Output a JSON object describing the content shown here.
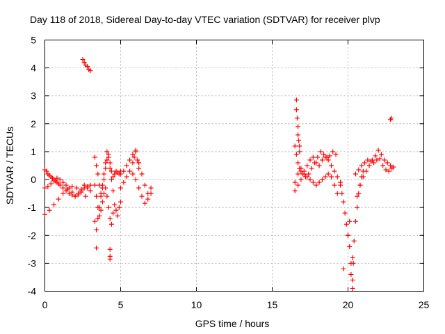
{
  "chart_data": {
    "type": "scatter",
    "title": "Day 118 of 2018, Sidereal Day-to-day VTEC variation (SDTVAR) for receiver plvp",
    "xlabel": "GPS time / hours",
    "ylabel": "SDTVAR / TECUs",
    "xlim": [
      0,
      25
    ],
    "ylim": [
      -4,
      5
    ],
    "xticks": [
      0,
      5,
      10,
      15,
      20,
      25
    ],
    "yticks": [
      -4,
      -3,
      -2,
      -1,
      0,
      1,
      2,
      3,
      4,
      5
    ],
    "grid": true,
    "marker": "+",
    "color": "#ff0000",
    "series": [
      {
        "name": "SDTVAR",
        "x": [
          0.0,
          0.1,
          0.2,
          0.3,
          0.4,
          0.5,
          0.6,
          0.7,
          0.8,
          0.9,
          1.0,
          1.2,
          1.4,
          1.6,
          1.8,
          2.0,
          2.2,
          2.4,
          2.6,
          2.8,
          3.0,
          0.0,
          0.2,
          0.4,
          0.6,
          0.8,
          1.0,
          1.2,
          1.4,
          1.6,
          1.8,
          2.0,
          2.2,
          2.4,
          2.6,
          2.8,
          3.0,
          0.0,
          0.3,
          0.6,
          0.9,
          1.2,
          1.5,
          1.8,
          2.1,
          2.4,
          2.7,
          3.0,
          2.5,
          2.6,
          2.7,
          2.8,
          2.9,
          3.0,
          3.3,
          3.4,
          3.5,
          3.6,
          3.7,
          3.8,
          3.9,
          4.0,
          4.1,
          4.2,
          4.3,
          4.4,
          4.5,
          4.6,
          4.7,
          4.8,
          4.9,
          5.0,
          3.3,
          3.4,
          3.5,
          3.6,
          3.7,
          3.8,
          3.9,
          4.0,
          4.1,
          4.2,
          4.3,
          4.4,
          4.5,
          4.6,
          4.7,
          4.8,
          4.9,
          5.0,
          3.3,
          3.4,
          3.5,
          3.6,
          3.7,
          3.8,
          3.9,
          4.0,
          4.1,
          4.2,
          4.3,
          4.4,
          4.5,
          3.4,
          4.3,
          4.3,
          4.3,
          5.0,
          5.2,
          5.4,
          5.6,
          5.8,
          6.0,
          6.2,
          6.4,
          6.6,
          6.8,
          7.0,
          5.0,
          5.2,
          5.4,
          5.6,
          5.8,
          6.0,
          6.2,
          6.4,
          6.6,
          6.8,
          7.0,
          5.8,
          5.9,
          6.0,
          6.1,
          6.2,
          16.5,
          16.6,
          16.7,
          16.8,
          16.9,
          17.0,
          17.2,
          17.4,
          17.6,
          17.8,
          18.0,
          18.2,
          18.4,
          18.6,
          18.8,
          19.0,
          19.2,
          16.5,
          16.7,
          16.9,
          17.1,
          17.3,
          17.5,
          17.7,
          17.9,
          18.1,
          18.3,
          18.5,
          18.7,
          18.9,
          19.1,
          19.3,
          19.5,
          16.5,
          16.7,
          16.9,
          17.1,
          17.3,
          17.5,
          17.7,
          17.9,
          18.1,
          18.3,
          18.5,
          18.7,
          18.9,
          19.1,
          19.3,
          16.6,
          16.6,
          16.65,
          16.7,
          16.7,
          16.75,
          16.8,
          16.8,
          19.5,
          19.6,
          19.7,
          19.8,
          19.9,
          20.0,
          20.1,
          20.2,
          20.3,
          20.4,
          20.5,
          20.6,
          20.7,
          20.8,
          20.9,
          21.0,
          19.7,
          20.0,
          20.1,
          20.2,
          20.3,
          20.3,
          20.35,
          20.6,
          20.8,
          21.0,
          21.2,
          21.4,
          21.6,
          21.8,
          22.0,
          22.2,
          22.4,
          22.6,
          22.8,
          23.0,
          20.5,
          20.7,
          20.9,
          21.1,
          21.3,
          21.5,
          21.7,
          21.9,
          22.1,
          22.3,
          22.5,
          22.7,
          22.9,
          22.8,
          22.85
        ],
        "y": [
          0.35,
          0.3,
          0.2,
          0.15,
          0.1,
          0.05,
          0.0,
          -0.05,
          -0.1,
          -0.15,
          -0.2,
          -0.3,
          -0.4,
          -0.5,
          -0.55,
          -0.6,
          -0.5,
          -0.4,
          -0.3,
          -0.25,
          -0.2,
          -0.3,
          -0.25,
          -0.15,
          -0.05,
          0.05,
          0.0,
          -0.1,
          -0.2,
          -0.3,
          -0.45,
          -0.6,
          -0.55,
          -0.35,
          -0.2,
          -0.3,
          -0.4,
          -1.25,
          -1.1,
          -0.9,
          -0.7,
          -0.5,
          -0.35,
          -0.25,
          -0.3,
          -0.45,
          -0.6,
          -0.4,
          4.3,
          4.2,
          4.1,
          4.05,
          3.95,
          3.9,
          0.8,
          0.5,
          0.2,
          -0.2,
          -0.5,
          -0.3,
          0.0,
          0.4,
          0.7,
          0.9,
          0.6,
          0.3,
          0.1,
          0.2,
          0.3,
          0.25,
          0.2,
          0.3,
          -0.2,
          -0.6,
          -1.0,
          -1.3,
          -1.1,
          -0.8,
          -0.5,
          -0.3,
          -0.6,
          -1.0,
          -1.4,
          -1.6,
          -1.2,
          -0.9,
          -1.1,
          -1.3,
          -1.0,
          -0.8,
          -1.5,
          -1.8,
          -1.4,
          -1.0,
          -0.6,
          -0.2,
          0.2,
          0.6,
          1.0,
          0.8,
          0.4,
          0.0,
          -0.4,
          -2.45,
          -2.5,
          -2.75,
          -2.85,
          0.2,
          0.3,
          0.5,
          0.7,
          0.9,
          1.05,
          0.6,
          0.2,
          -0.2,
          -0.5,
          -0.3,
          -0.3,
          -0.1,
          0.1,
          0.3,
          0.2,
          0.0,
          -0.3,
          -0.6,
          -0.85,
          -0.7,
          -0.5,
          0.6,
          0.8,
          1.0,
          0.7,
          0.4,
          1.2,
          0.9,
          0.6,
          0.4,
          0.3,
          0.2,
          0.1,
          0.2,
          0.4,
          0.6,
          0.8,
          1.0,
          0.9,
          0.8,
          0.85,
          1.0,
          0.9,
          -0.4,
          -0.2,
          0.0,
          0.2,
          0.5,
          0.7,
          0.8,
          0.6,
          0.5,
          0.7,
          0.8,
          0.7,
          0.5,
          0.3,
          0.1,
          -0.1,
          -0.1,
          0.2,
          0.4,
          0.3,
          0.1,
          0.0,
          -0.1,
          -0.2,
          -0.1,
          0.0,
          0.1,
          0.2,
          0.1,
          -0.2,
          -0.5,
          2.85,
          2.5,
          2.2,
          1.9,
          1.6,
          1.4,
          1.2,
          1.0,
          -0.2,
          -0.5,
          -0.8,
          -1.2,
          -1.6,
          -2.0,
          -2.4,
          -3.0,
          -2.8,
          -2.2,
          -1.5,
          -1.0,
          -0.5,
          -0.2,
          0.1,
          0.3,
          -3.2,
          -2.0,
          -1.5,
          -3.4,
          -3.6,
          -3.9,
          -3.0,
          -0.6,
          -0.2,
          0.1,
          0.3,
          0.5,
          0.7,
          0.85,
          1.05,
          0.9,
          0.7,
          0.6,
          0.5,
          0.45,
          0.2,
          0.35,
          0.5,
          0.6,
          0.7,
          0.65,
          0.6,
          0.7,
          0.75,
          0.5,
          0.35,
          0.3,
          0.4,
          2.15,
          2.2
        ]
      }
    ],
    "yticklabels": [
      "-4",
      "-3",
      "-2",
      "-1",
      "0",
      "1",
      "2",
      "3",
      "4",
      "5"
    ],
    "xticklabels": [
      "0",
      "5",
      "10",
      "15",
      "20",
      "25"
    ]
  }
}
